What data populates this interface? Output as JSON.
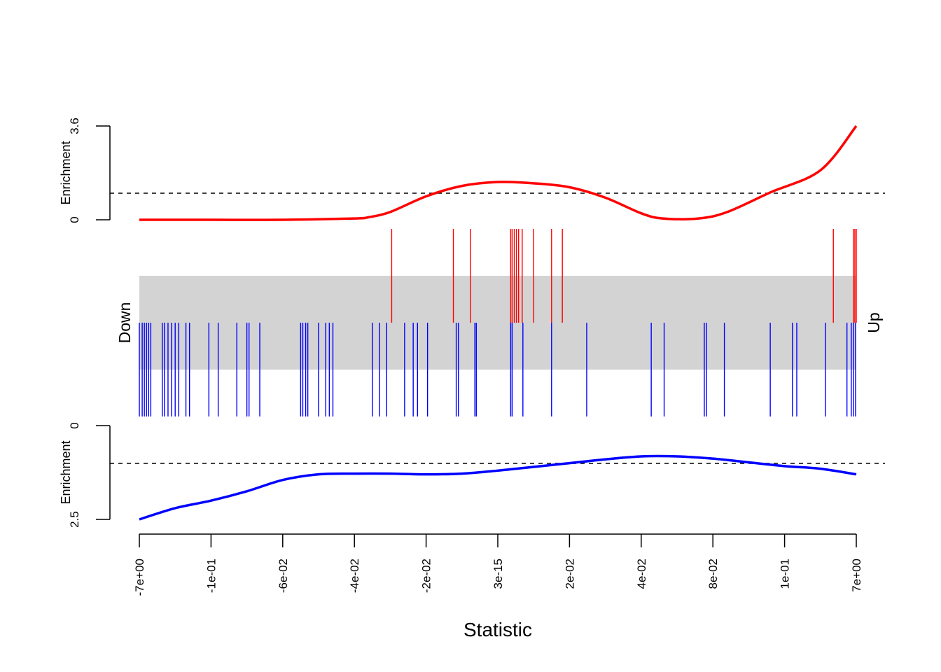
{
  "chart_data": {
    "type": "barcode",
    "xlabel": "Statistic",
    "x_tick_labels": [
      "-7e+00",
      "-1e-01",
      "-6e-02",
      "-4e-02",
      "-2e-02",
      "3e-15",
      "2e-02",
      "4e-02",
      "8e-02",
      "1e-01",
      "7e+00"
    ],
    "side_labels": {
      "left": "Down",
      "right": "Up"
    },
    "up": {
      "color": "#ff0000",
      "ylabel": "Enrichment",
      "y_tick_labels": [
        "0",
        "3.6"
      ],
      "ylim": [
        0,
        3.6
      ],
      "reference_line": 1.0,
      "rank_range": [
        0,
        10
      ],
      "barcode_positions": [
        3.52,
        4.38,
        4.62,
        5.18,
        5.2,
        5.23,
        5.26,
        5.29,
        5.34,
        5.5,
        5.75,
        5.9,
        9.68,
        9.96,
        9.98,
        10.0
      ],
      "enrichment_curve": [
        [
          0,
          0.0
        ],
        [
          1,
          0.0
        ],
        [
          2,
          0.0
        ],
        [
          3,
          0.05
        ],
        [
          3.2,
          0.1
        ],
        [
          3.5,
          0.3
        ],
        [
          4.0,
          0.9
        ],
        [
          4.5,
          1.3
        ],
        [
          5.0,
          1.45
        ],
        [
          5.5,
          1.4
        ],
        [
          6.0,
          1.25
        ],
        [
          6.5,
          0.85
        ],
        [
          7.0,
          0.25
        ],
        [
          7.3,
          0.05
        ],
        [
          7.8,
          0.05
        ],
        [
          8.2,
          0.3
        ],
        [
          8.8,
          1.05
        ],
        [
          9.5,
          1.9
        ],
        [
          10.0,
          3.6
        ]
      ]
    },
    "down": {
      "color": "#0000ff",
      "ylabel": "Enrichment",
      "y_tick_labels": [
        "0",
        "2.5"
      ],
      "ylim": [
        0,
        2.5
      ],
      "reference_line": 1.0,
      "rank_range": [
        0,
        10
      ],
      "barcode_positions": [
        0.0,
        0.04,
        0.07,
        0.1,
        0.13,
        0.16,
        0.32,
        0.35,
        0.4,
        0.45,
        0.5,
        0.55,
        0.65,
        0.7,
        0.97,
        1.1,
        1.36,
        1.5,
        1.53,
        1.68,
        2.25,
        2.28,
        2.32,
        2.35,
        2.5,
        2.6,
        2.65,
        2.7,
        3.25,
        3.35,
        3.45,
        3.7,
        3.82,
        3.88,
        4.02,
        4.42,
        4.45,
        4.68,
        4.7,
        5.18,
        5.2,
        5.35,
        5.75,
        6.24,
        7.14,
        7.32,
        7.88,
        7.91,
        8.16,
        8.8,
        9.11,
        9.17,
        9.57,
        9.87,
        9.93,
        9.96,
        9.99
      ],
      "enrichment_curve": [
        [
          0,
          2.5
        ],
        [
          0.5,
          2.2
        ],
        [
          1.0,
          2.0
        ],
        [
          1.5,
          1.75
        ],
        [
          2.0,
          1.45
        ],
        [
          2.5,
          1.3
        ],
        [
          3.0,
          1.28
        ],
        [
          3.5,
          1.28
        ],
        [
          4.0,
          1.3
        ],
        [
          4.5,
          1.28
        ],
        [
          5.0,
          1.2
        ],
        [
          5.5,
          1.1
        ],
        [
          6.0,
          1.0
        ],
        [
          6.5,
          0.9
        ],
        [
          7.0,
          0.82
        ],
        [
          7.5,
          0.82
        ],
        [
          8.0,
          0.88
        ],
        [
          8.5,
          0.98
        ],
        [
          9.0,
          1.08
        ],
        [
          9.5,
          1.15
        ],
        [
          10.0,
          1.3
        ]
      ]
    }
  }
}
